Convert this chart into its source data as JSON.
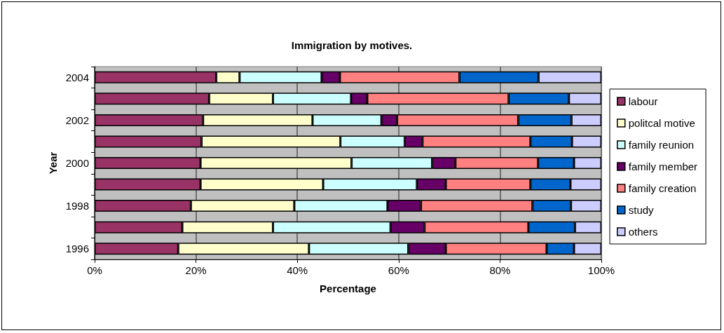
{
  "chart_data": {
    "type": "bar",
    "orientation": "horizontal",
    "stacked": true,
    "title": "Immigration by motives.",
    "xlabel": "Percentage",
    "ylabel": "Year",
    "categories": [
      "2004",
      null,
      "2002",
      null,
      "2000",
      null,
      "1998",
      null,
      "1996"
    ],
    "series": [
      {
        "name": "labour",
        "color": "#993366",
        "values": [
          24.0,
          22.6,
          21.4,
          21.1,
          20.9,
          20.9,
          19.0,
          17.3,
          16.5
        ]
      },
      {
        "name": "politcal motive",
        "color": "#ffffcc",
        "values": [
          4.6,
          12.6,
          21.6,
          27.4,
          29.8,
          24.2,
          20.4,
          17.9,
          25.8
        ]
      },
      {
        "name": "family reunion",
        "color": "#ccffff",
        "values": [
          16.2,
          15.4,
          13.6,
          12.7,
          15.9,
          18.5,
          18.4,
          23.2,
          19.6
        ]
      },
      {
        "name": "family member",
        "color": "#660066",
        "values": [
          3.6,
          3.2,
          3.1,
          3.5,
          4.6,
          5.7,
          6.6,
          6.7,
          7.4
        ]
      },
      {
        "name": "family creation",
        "color": "#ff8080",
        "values": [
          23.6,
          27.9,
          23.9,
          21.3,
          16.3,
          16.7,
          22.0,
          20.5,
          19.9
        ]
      },
      {
        "name": "study",
        "color": "#0066cc",
        "values": [
          15.6,
          11.9,
          10.5,
          8.2,
          7.1,
          7.9,
          7.6,
          9.2,
          5.4
        ]
      },
      {
        "name": "others",
        "color": "#ccccff",
        "values": [
          12.4,
          6.4,
          5.9,
          5.8,
          5.4,
          6.1,
          6.0,
          5.2,
          5.4
        ]
      }
    ],
    "xlim": [
      0,
      100
    ],
    "xticks": [
      {
        "value": 0,
        "label": "0%"
      },
      {
        "value": 20,
        "label": "20%"
      },
      {
        "value": 40,
        "label": "40%"
      },
      {
        "value": 60,
        "label": "60%"
      },
      {
        "value": 80,
        "label": "80%"
      },
      {
        "value": 100,
        "label": "100%"
      }
    ],
    "grid": "x",
    "legend": "right"
  }
}
